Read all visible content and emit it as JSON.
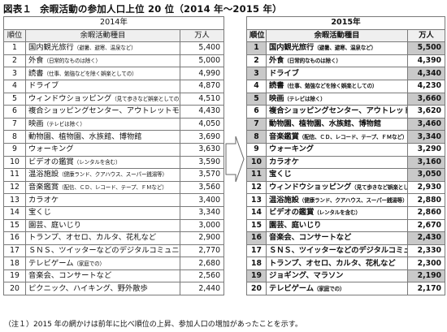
{
  "title": {
    "label": "図表１",
    "text": "余暇活動の参加人口上位 20 位（2014 年～2015 年）"
  },
  "headers": {
    "rank": "順位",
    "activity": "余暇活動種目",
    "value": "万人"
  },
  "table2014": {
    "year": "2014年",
    "rows": [
      {
        "rank": "1",
        "name": "国内観光旅行",
        "note": "（避暑、避寒、温泉など）",
        "value": "5,400"
      },
      {
        "rank": "2",
        "name": "外食",
        "note": "（日常的なものは除く）",
        "value": "5,000"
      },
      {
        "rank": "3",
        "name": "読書",
        "note": "（仕事、勉強などを除く娯楽としての）",
        "value": "4,990"
      },
      {
        "rank": "4",
        "name": "ドライブ",
        "note": "",
        "value": "4,870"
      },
      {
        "rank": "5",
        "name": "ウィンドウショッピング",
        "note": "（見て歩きなど娯楽としての）",
        "value": "4,510"
      },
      {
        "rank": "6",
        "name": "複合ショッピングセンター、アウトレットモール",
        "note": "",
        "value": "4,430"
      },
      {
        "rank": "7",
        "name": "映画",
        "note": "（テレビは除く）",
        "value": "4,050"
      },
      {
        "rank": "8",
        "name": "動物園、植物園、水族館、博物館",
        "note": "",
        "value": "3,690"
      },
      {
        "rank": "9",
        "name": "ウォーキング",
        "note": "",
        "value": "3,630"
      },
      {
        "rank": "10",
        "name": "ビデオの鑑賞",
        "note": "（レンタルを含む）",
        "value": "3,590"
      },
      {
        "rank": "11",
        "name": "温浴施設",
        "note": "（健康ランド、クアハウス、スーパー銭湯等）",
        "value": "3,570"
      },
      {
        "rank": "12",
        "name": "音楽鑑賞",
        "note": "（配信、ＣＤ、レコード、テープ、ＦＭなど）",
        "value": "3,560"
      },
      {
        "rank": "13",
        "name": "カラオケ",
        "note": "",
        "value": "3,400"
      },
      {
        "rank": "14",
        "name": "宝くじ",
        "note": "",
        "value": "3,340"
      },
      {
        "rank": "15",
        "name": "園芸、庭いじり",
        "note": "",
        "value": "3,000"
      },
      {
        "rank": "16",
        "name": "トランプ、オセロ、カルタ、花札など",
        "note": "",
        "value": "2,900"
      },
      {
        "rank": "17",
        "name": "ＳＮＳ、ツイッターなどのデジタルコミュニケーション",
        "note": "",
        "value": "2,770"
      },
      {
        "rank": "18",
        "name": "テレビゲーム",
        "note": "（家庭での）",
        "value": "2,680"
      },
      {
        "rank": "19",
        "name": "音楽会、コンサートなど",
        "note": "",
        "value": "2,560"
      },
      {
        "rank": "20",
        "name": "ピクニック、ハイキング、野外散歩",
        "note": "",
        "value": "2,440"
      }
    ]
  },
  "table2015": {
    "year": "2015年",
    "rows": [
      {
        "rank": "1",
        "name": "国内観光旅行",
        "note": "（避暑、避寒、温泉など）",
        "value": "5,500",
        "hl": true
      },
      {
        "rank": "2",
        "name": "外食",
        "note": "（日常的なものは除く）",
        "value": "4,390",
        "hl": false
      },
      {
        "rank": "3",
        "name": "ドライブ",
        "note": "",
        "value": "4,340",
        "hl": true
      },
      {
        "rank": "4",
        "name": "読書",
        "note": "（仕事、勉強などを除く娯楽としての）",
        "value": "4,230",
        "hl": false
      },
      {
        "rank": "5",
        "name": "映画",
        "note": "（テレビは除く）",
        "value": "3,660",
        "hl": true
      },
      {
        "rank": "6",
        "name": "複合ショッピングセンター、アウトレットモール",
        "note": "",
        "value": "3,620",
        "hl": false
      },
      {
        "rank": "7",
        "name": "動物園、植物園、水族館、博物館",
        "note": "",
        "value": "3,460",
        "hl": true
      },
      {
        "rank": "8",
        "name": "音楽鑑賞",
        "note": "（配信、ＣＤ、レコード、テープ、ＦＭなど）",
        "value": "3,340",
        "hl": true
      },
      {
        "rank": "9",
        "name": "ウォーキング",
        "note": "",
        "value": "3,290",
        "hl": false
      },
      {
        "rank": "10",
        "name": "カラオケ",
        "note": "",
        "value": "3,160",
        "hl": true
      },
      {
        "rank": "11",
        "name": "宝くじ",
        "note": "",
        "value": "3,050",
        "hl": true
      },
      {
        "rank": "12",
        "name": "ウィンドウショッピング",
        "note": "（見て歩きなど娯楽としての）",
        "value": "2,930",
        "hl": false
      },
      {
        "rank": "13",
        "name": "温浴施設",
        "note": "（健康ランド、クアハウス、スーパー銭湯等）",
        "value": "2,880",
        "hl": false
      },
      {
        "rank": "14",
        "name": "ビデオの鑑賞",
        "note": "（レンタルを含む）",
        "value": "2,860",
        "hl": false
      },
      {
        "rank": "15",
        "name": "園芸、庭いじり",
        "note": "",
        "value": "2,670",
        "hl": false
      },
      {
        "rank": "16",
        "name": "音楽会、コンサートなど",
        "note": "",
        "value": "2,430",
        "hl": true
      },
      {
        "rank": "17",
        "name": "ＳＮＳ、ツイッターなどのデジタルコミュニケーション",
        "note": "",
        "value": "2,330",
        "hl": false
      },
      {
        "rank": "18",
        "name": "トランプ、オセロ、カルタ、花札など",
        "note": "",
        "value": "2,300",
        "hl": false
      },
      {
        "rank": "19",
        "name": "ジョギング、マラソン",
        "note": "",
        "value": "2,190",
        "hl": true
      },
      {
        "rank": "20",
        "name": "テレビゲーム",
        "note": "（家庭での）",
        "value": "2,170",
        "hl": false
      }
    ]
  },
  "arrow": {
    "icon": "right-arrow-icon",
    "fill": "#ffffff",
    "stroke": "#666666"
  },
  "highlight_color": "#c9c9c9",
  "footnote": "（注１）2015 年の網かけは前年に比べ順位の上昇、参加人口の増加があったことを示す。"
}
